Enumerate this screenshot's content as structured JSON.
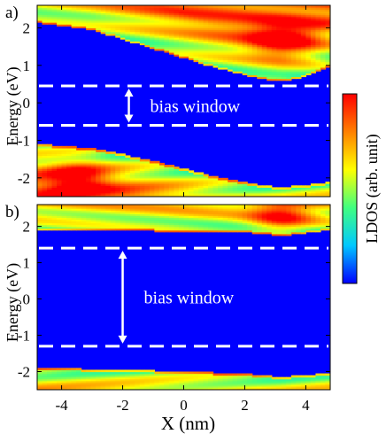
{
  "chart_data": [
    {
      "type": "heatmap",
      "panel_label": "a)",
      "ylabel": "Energy  (eV)",
      "xlim": [
        -4.8,
        4.8
      ],
      "ylim": [
        -2.5,
        2.6
      ],
      "yticks": [
        "2",
        "1",
        "0",
        "-1",
        "-2"
      ],
      "yticks_values": [
        2,
        1,
        0,
        -1,
        -2
      ],
      "bias_window": {
        "label": "bias window",
        "lower_eV": -0.6,
        "upper_eV": 0.45
      },
      "bands": [
        {
          "kind": "upper",
          "x": [
            -4.8,
            -3,
            -1,
            1,
            2.5,
            3.2,
            4,
            4.8
          ],
          "y": [
            2.15,
            1.95,
            1.45,
            0.95,
            0.65,
            0.58,
            0.7,
            1.0
          ]
        },
        {
          "kind": "lower",
          "x": [
            -4.8,
            -3,
            -1,
            1,
            2.5,
            3.2,
            4,
            4.8
          ],
          "y": [
            -1.1,
            -1.2,
            -1.55,
            -1.95,
            -2.2,
            -2.25,
            -2.2,
            -2.1
          ]
        }
      ],
      "hot_spots": [
        {
          "x": 3.2,
          "y": 1.7
        },
        {
          "x": -3.5,
          "y": -2.0
        }
      ]
    },
    {
      "type": "heatmap",
      "panel_label": "b)",
      "ylabel": "Energy  (eV)",
      "xlabel": "X (nm)",
      "xlim": [
        -4.8,
        4.8
      ],
      "ylim": [
        -2.5,
        2.6
      ],
      "xticks": [
        "-4",
        "-2",
        "0",
        "2",
        "4"
      ],
      "xticks_values": [
        -4,
        -2,
        0,
        2,
        4
      ],
      "yticks": [
        "2",
        "1",
        "0",
        "-1",
        "-2"
      ],
      "yticks_values": [
        2,
        1,
        0,
        -1,
        -2
      ],
      "bias_window": {
        "label": "bias window",
        "lower_eV": -1.3,
        "upper_eV": 1.4
      },
      "bands": [
        {
          "kind": "upper",
          "x": [
            -4.8,
            -2,
            0,
            2,
            3.2,
            4.8
          ],
          "y": [
            1.9,
            1.9,
            1.85,
            1.85,
            1.75,
            1.9
          ]
        },
        {
          "kind": "lower",
          "x": [
            -4.8,
            -2,
            0,
            2,
            3.2,
            4.8
          ],
          "y": [
            -1.9,
            -1.95,
            -2.0,
            -2.05,
            -2.15,
            -2.05
          ]
        }
      ],
      "hot_spots": [
        {
          "x": 3.2,
          "y": 2.3
        }
      ]
    }
  ],
  "colorbar": {
    "label": "LDOS (arb. unit)",
    "colors": [
      "#0000ff",
      "#00c8ff",
      "#40ff80",
      "#ffff00",
      "#ff8000",
      "#ff0000"
    ]
  }
}
